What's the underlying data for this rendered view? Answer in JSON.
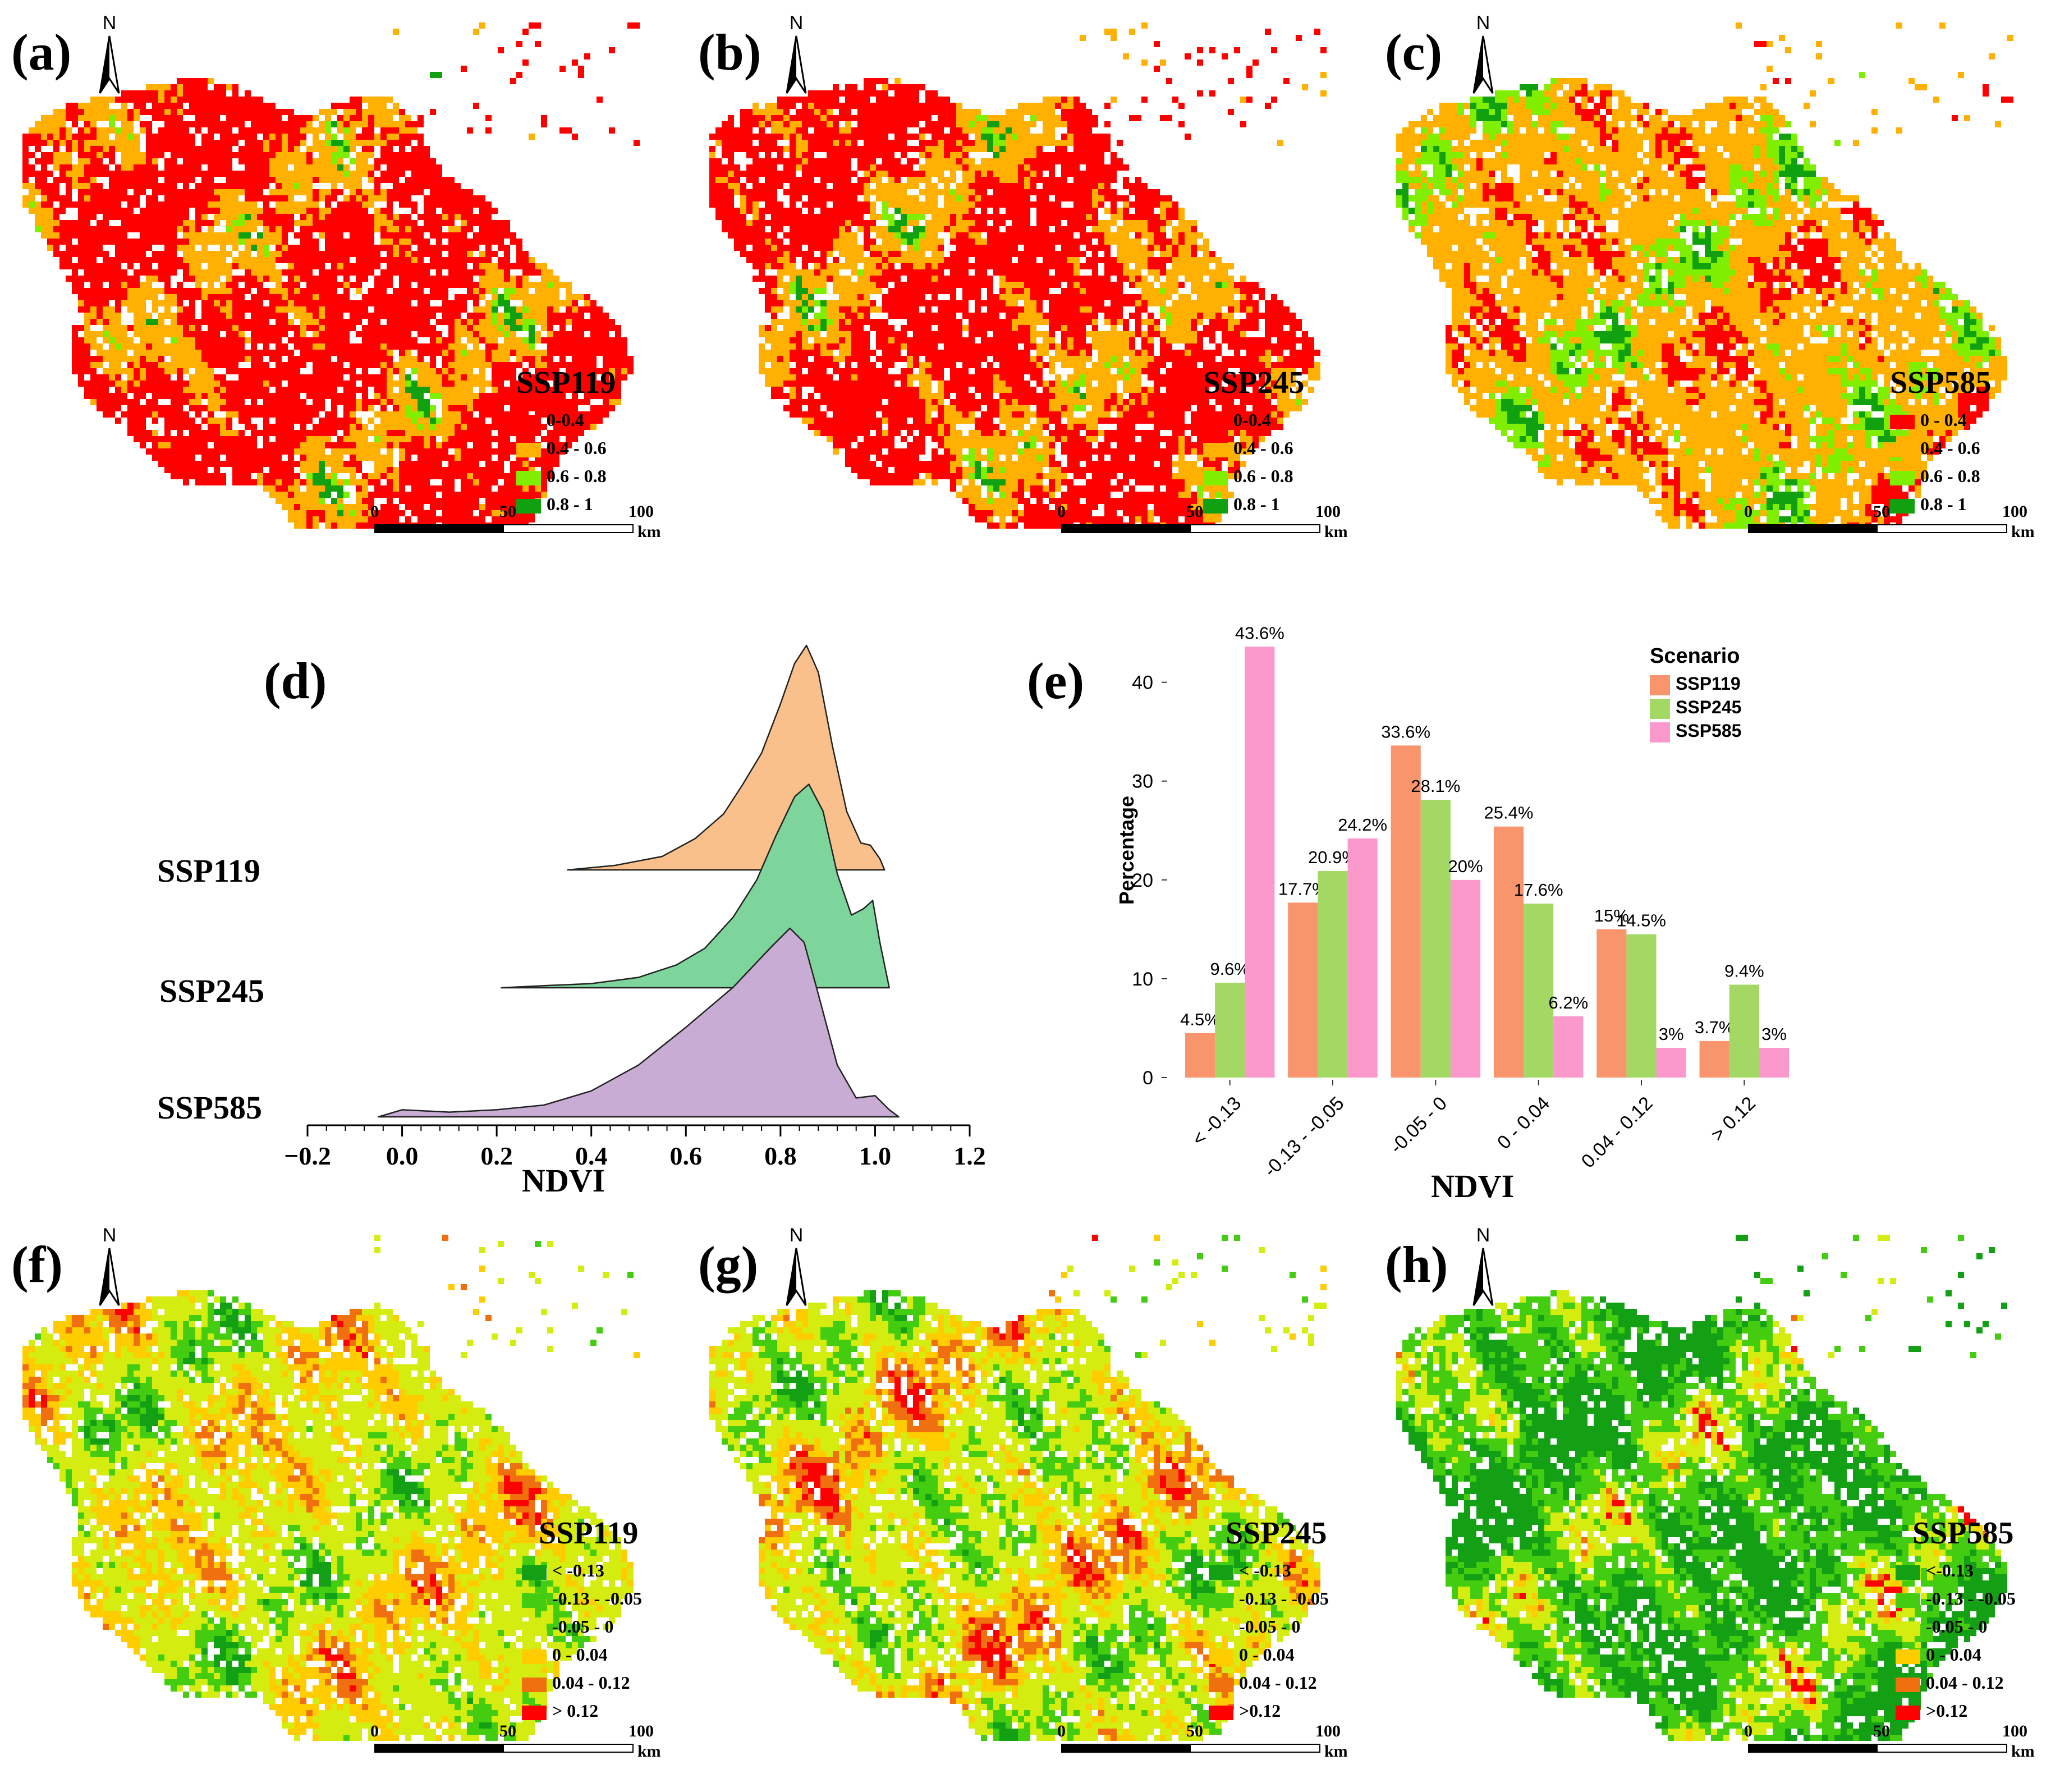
{
  "map_panels": [
    {
      "id": "a",
      "label": "(a)",
      "scenario": "SSP119",
      "north": "N",
      "legend": [
        [
          "#ff0000",
          "0-0.4"
        ],
        [
          "#ffb000",
          "0.4 - 0.6"
        ],
        [
          "#80ee00",
          "0.6 - 0.8"
        ],
        [
          "#10a010",
          "0.8 - 1"
        ]
      ],
      "scale": [
        "0",
        "50",
        "100",
        "km"
      ],
      "weights": [
        0.04,
        0.06,
        0.3,
        0.6
      ],
      "seed": 11
    },
    {
      "id": "b",
      "label": "(b)",
      "scenario": "SSP245",
      "north": "N",
      "legend": [
        [
          "#ff0000",
          "0-0.4"
        ],
        [
          "#ffb000",
          "0.4 - 0.6"
        ],
        [
          "#80ee00",
          "0.6 - 0.8"
        ],
        [
          "#10a010",
          "0.8 - 1"
        ]
      ],
      "scale": [
        "0",
        "50",
        "100",
        "km"
      ],
      "weights": [
        0.03,
        0.07,
        0.32,
        0.58
      ],
      "seed": 23
    },
    {
      "id": "c",
      "label": "(c)",
      "scenario": "SSP585",
      "north": "N",
      "legend": [
        [
          "#ff0000",
          "0 - 0.4"
        ],
        [
          "#ffb000",
          "0.4 - 0.6"
        ],
        [
          "#80ee00",
          "0.6 - 0.8"
        ],
        [
          "#10a010",
          "0.8 - 1"
        ]
      ],
      "scale": [
        "0",
        "50",
        "100",
        "km"
      ],
      "weights": [
        0.12,
        0.18,
        0.42,
        0.28
      ],
      "seed": 37
    },
    {
      "id": "f",
      "label": "(f)",
      "scenario": "SSP119",
      "north": "N",
      "legend": [
        [
          "#14a014",
          "< -0.13"
        ],
        [
          "#44cc10",
          "-0.13 - -0.05"
        ],
        [
          "#d4ec10",
          "-0.05 - 0"
        ],
        [
          "#ffcc00",
          "0 - 0.04"
        ],
        [
          "#f07010",
          "0.04 - 0.12"
        ],
        [
          "#ff0000",
          "> 0.12"
        ]
      ],
      "scale": [
        "0",
        "50",
        "100",
        "km"
      ],
      "weights": [
        0.1,
        0.18,
        0.3,
        0.22,
        0.13,
        0.07
      ],
      "seed": 41
    },
    {
      "id": "g",
      "label": "(g)",
      "scenario": "SSP245",
      "north": "N",
      "legend": [
        [
          "#14a014",
          "< -0.13"
        ],
        [
          "#44cc10",
          "-0.13 - -0.05"
        ],
        [
          "#d4ec10",
          "-0.05 - 0"
        ],
        [
          "#ffcc00",
          "0 - 0.04"
        ],
        [
          "#f07010",
          "0.04 - 0.12"
        ],
        [
          "#ff0000",
          ">0.12"
        ]
      ],
      "scale": [
        "0",
        "50",
        "100",
        "km"
      ],
      "weights": [
        0.12,
        0.2,
        0.26,
        0.16,
        0.14,
        0.12
      ],
      "seed": 53
    },
    {
      "id": "h",
      "label": "(h)",
      "scenario": "SSP585",
      "north": "N",
      "legend": [
        [
          "#14a014",
          "<-0.13"
        ],
        [
          "#44cc10",
          "-0.13 - -0.05"
        ],
        [
          "#d4ec10",
          "-0.05 - 0"
        ],
        [
          "#ffcc00",
          "0 - 0.04"
        ],
        [
          "#f07010",
          "0.04 - 0.12"
        ],
        [
          "#ff0000",
          ">0.12"
        ]
      ],
      "scale": [
        "0",
        "50",
        "100",
        "km"
      ],
      "weights": [
        0.44,
        0.24,
        0.2,
        0.06,
        0.03,
        0.03
      ],
      "seed": 67
    }
  ],
  "chart_data": [
    {
      "type": "ridgeline",
      "label": "(d)",
      "xlabel": "NDVI",
      "xlim": [
        -0.2,
        1.2
      ],
      "xticks": [
        "−0.2",
        "0.0",
        "0.2",
        "0.4",
        "0.6",
        "0.8",
        "1.0",
        "1.2"
      ],
      "series": [
        {
          "name": "SSP119",
          "color": "#f9c08c",
          "points": [
            [
              0.35,
              0.0
            ],
            [
              0.45,
              0.02
            ],
            [
              0.55,
              0.06
            ],
            [
              0.62,
              0.14
            ],
            [
              0.68,
              0.25
            ],
            [
              0.72,
              0.38
            ],
            [
              0.76,
              0.52
            ],
            [
              0.8,
              0.74
            ],
            [
              0.83,
              0.92
            ],
            [
              0.855,
              1.0
            ],
            [
              0.88,
              0.88
            ],
            [
              0.91,
              0.55
            ],
            [
              0.94,
              0.26
            ],
            [
              0.97,
              0.12
            ],
            [
              0.99,
              0.11
            ],
            [
              1.01,
              0.05
            ],
            [
              1.02,
              0.0
            ]
          ]
        },
        {
          "name": "SSP245",
          "color": "#7ed59c",
          "points": [
            [
              0.21,
              0.0
            ],
            [
              0.3,
              0.01
            ],
            [
              0.4,
              0.02
            ],
            [
              0.5,
              0.05
            ],
            [
              0.58,
              0.11
            ],
            [
              0.64,
              0.19
            ],
            [
              0.7,
              0.34
            ],
            [
              0.75,
              0.52
            ],
            [
              0.79,
              0.73
            ],
            [
              0.83,
              0.92
            ],
            [
              0.86,
              0.98
            ],
            [
              0.89,
              0.85
            ],
            [
              0.92,
              0.55
            ],
            [
              0.95,
              0.35
            ],
            [
              0.975,
              0.38
            ],
            [
              0.995,
              0.42
            ],
            [
              1.01,
              0.22
            ],
            [
              1.03,
              0.0
            ]
          ]
        },
        {
          "name": "SSP585",
          "color": "#c8acd4",
          "points": [
            [
              -0.05,
              0.0
            ],
            [
              0.0,
              0.03
            ],
            [
              0.1,
              0.02
            ],
            [
              0.2,
              0.03
            ],
            [
              0.3,
              0.05
            ],
            [
              0.4,
              0.11
            ],
            [
              0.5,
              0.22
            ],
            [
              0.6,
              0.38
            ],
            [
              0.7,
              0.55
            ],
            [
              0.78,
              0.72
            ],
            [
              0.82,
              0.8
            ],
            [
              0.85,
              0.74
            ],
            [
              0.88,
              0.52
            ],
            [
              0.92,
              0.22
            ],
            [
              0.96,
              0.08
            ],
            [
              1.0,
              0.09
            ],
            [
              1.03,
              0.03
            ],
            [
              1.05,
              0.0
            ]
          ]
        }
      ]
    },
    {
      "type": "bar",
      "label": "(e)",
      "ylabel": "Percentage",
      "xlabel": "NDVI",
      "ylim": [
        0,
        46
      ],
      "yticks": [
        "0",
        "10",
        "20",
        "30",
        "40"
      ],
      "categories": [
        "< -0.13",
        "-0.13 - -0.05",
        "-0.05 - 0",
        "0 - 0.04",
        "0.04 - 0.12",
        "> 0.12"
      ],
      "legend_title": "Scenario",
      "series": [
        {
          "name": "SSP119",
          "color": "#f9956c",
          "values": [
            4.5,
            17.7,
            33.6,
            25.4,
            15,
            3.7
          ],
          "labels": [
            "4.5%",
            "17.7%",
            "33.6%",
            "25.4%",
            "15%",
            "3.7%"
          ]
        },
        {
          "name": "SSP245",
          "color": "#a3d865",
          "values": [
            9.6,
            20.9,
            28.1,
            17.6,
            14.5,
            9.4
          ],
          "labels": [
            "9.6%",
            "20.9%",
            "28.1%",
            "17.6%",
            "14.5%",
            "9.4%"
          ]
        },
        {
          "name": "SSP585",
          "color": "#fb99cc",
          "values": [
            43.6,
            24.2,
            20,
            6.2,
            3,
            3
          ],
          "labels": [
            "43.6%",
            "24.2%",
            "20%",
            "6.2%",
            "3%",
            "3%"
          ]
        }
      ]
    }
  ]
}
